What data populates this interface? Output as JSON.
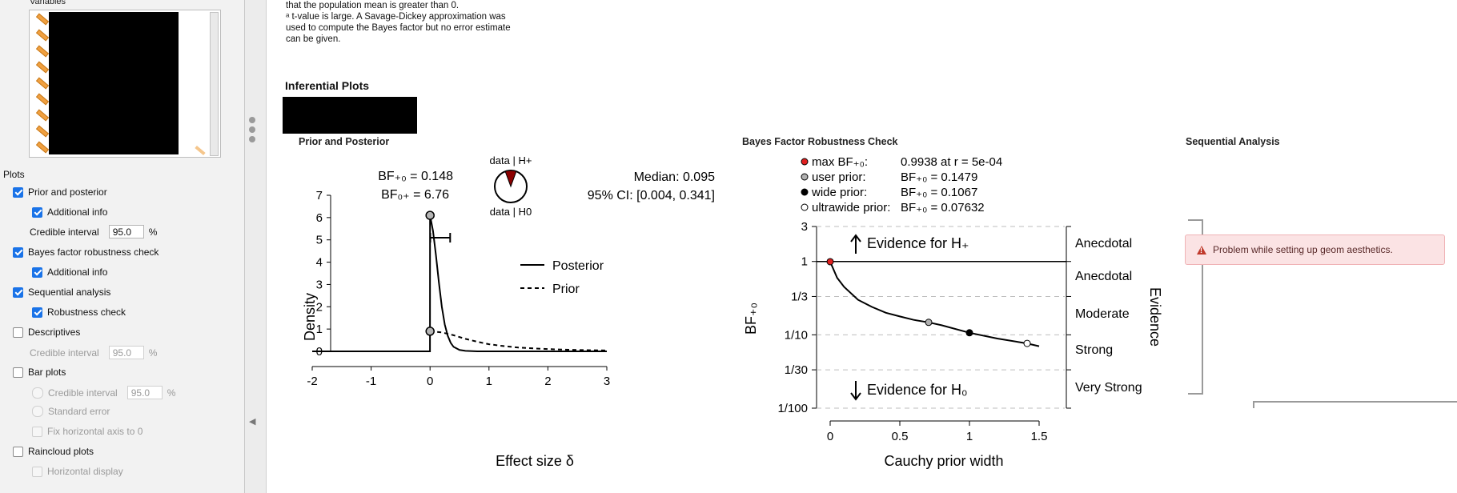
{
  "sidebar": {
    "variables_label": "Variables",
    "plots_label": "Plots",
    "options": [
      {
        "label": "Prior and posterior",
        "checked": true,
        "enabled": true
      },
      {
        "label": "Additional info",
        "checked": true,
        "enabled": true
      },
      {
        "label": "Bayes factor robustness check",
        "checked": true,
        "enabled": true
      },
      {
        "label": "Additional info",
        "checked": true,
        "enabled": true
      },
      {
        "label": "Sequential analysis",
        "checked": true,
        "enabled": true
      },
      {
        "label": "Robustness check",
        "checked": true,
        "enabled": true
      },
      {
        "label": "Descriptives",
        "checked": false,
        "enabled": true
      },
      {
        "label": "Bar plots",
        "checked": false,
        "enabled": true
      },
      {
        "label": "Standard error",
        "checked": false,
        "enabled": false
      },
      {
        "label": "Fix horizontal axis to 0",
        "checked": false,
        "enabled": false
      },
      {
        "label": "Raincloud plots",
        "checked": false,
        "enabled": true
      },
      {
        "label": "Horizontal display",
        "checked": false,
        "enabled": false
      }
    ],
    "ci_label": "Credible interval",
    "ci_value": "95.0",
    "percent": "%"
  },
  "footnotes": [
    "that the population mean is greater than 0.",
    "ᵃ t-value is large. A Savage-Dickey approximation was",
    "used to compute the Bayes factor but no error estimate",
    "can be given."
  ],
  "main": {
    "heading": "Inferential Plots",
    "plot_titles": {
      "prior_posterior": "Prior and Posterior",
      "robustness": "Bayes Factor Robustness Check",
      "sequential": "Sequential Analysis"
    },
    "error_message": "Problem while setting up geom aesthetics."
  },
  "pp_plot": {
    "bf10_line": "BF₊₀ = 0.148",
    "bf01_line": "BF₀₊ = 6.76",
    "pie_top": "data | H+",
    "pie_bottom": "data | H0",
    "median": "Median: 0.095",
    "ci": "95% CI: [0.004, 0.341]",
    "ylabel": "Density",
    "xlabel": "Effect size δ",
    "legend_posterior": "Posterior",
    "legend_prior": "Prior",
    "x_ticks": [
      "-2",
      "-1",
      "0",
      "1",
      "2",
      "3"
    ],
    "y_ticks": [
      "0",
      "1",
      "2",
      "3",
      "4",
      "5",
      "6",
      "7"
    ]
  },
  "rb_plot": {
    "legend": [
      {
        "label": "max BF₊₀:",
        "value": "0.9938 at r = 5e-04",
        "color": "#e02020"
      },
      {
        "label": "user prior:",
        "value": "BF₊₀ = 0.1479",
        "color": "#b0b0b0"
      },
      {
        "label": "wide prior:",
        "value": "BF₊₀ = 0.1067",
        "color": "#000000"
      },
      {
        "label": "ultrawide prior:",
        "value": "BF₊₀ = 0.07632",
        "color": "#ffffff"
      }
    ],
    "y_ticks": [
      "3",
      "1",
      "1/3",
      "1/10",
      "1/30",
      "1/100"
    ],
    "x_ticks": [
      "0",
      "0.5",
      "1",
      "1.5"
    ],
    "evidence_labels": [
      "Anecdotal",
      "Anecdotal",
      "Moderate",
      "Strong",
      "Very Strong"
    ],
    "arrow_up_label": "Evidence for H₊",
    "arrow_down_label": "Evidence for H₀",
    "ylabel": "BF₊₀",
    "right_label": "Evidence",
    "xlabel": "Cauchy prior width"
  },
  "chart_data": [
    {
      "type": "line",
      "xlabel": "Effect size δ",
      "ylabel": "Density",
      "xlim": [
        -2,
        3
      ],
      "ylim": [
        0,
        7
      ],
      "series": [
        {
          "name": "Posterior",
          "x": [
            -2,
            -0.001,
            0,
            0.05,
            0.1,
            0.15,
            0.2,
            0.25,
            0.3,
            0.35,
            0.4,
            0.5,
            0.6,
            0.8,
            1,
            3
          ],
          "y": [
            0,
            0,
            6.1,
            5.4,
            4.3,
            3.1,
            2.0,
            1.2,
            0.7,
            0.38,
            0.2,
            0.06,
            0.02,
            0,
            0,
            0
          ]
        },
        {
          "name": "Prior",
          "x": [
            0,
            0.2,
            0.4,
            0.6,
            0.8,
            1.0,
            1.2,
            1.5,
            2.0,
            2.5,
            3.0
          ],
          "y": [
            0.9,
            0.85,
            0.72,
            0.56,
            0.43,
            0.32,
            0.25,
            0.17,
            0.1,
            0.06,
            0.04
          ]
        }
      ],
      "points": [
        {
          "x": 0,
          "y": 6.1
        },
        {
          "x": 0,
          "y": 0.9
        }
      ],
      "ci_interval": [
        0.004,
        0.341
      ]
    },
    {
      "type": "line",
      "xlabel": "Cauchy prior width",
      "ylabel": "BF₊₀",
      "xlim": [
        0,
        1.5
      ],
      "y_scale": "log",
      "ylim": [
        0.01,
        3
      ],
      "series": [
        {
          "name": "BF",
          "x": [
            0,
            0.05,
            0.1,
            0.2,
            0.3,
            0.4,
            0.5,
            0.6,
            0.707,
            0.8,
            1.0,
            1.2,
            1.414,
            1.5
          ],
          "y": [
            0.9938,
            0.6,
            0.45,
            0.3,
            0.24,
            0.2,
            0.178,
            0.16,
            0.1479,
            0.135,
            0.1067,
            0.089,
            0.07632,
            0.07
          ]
        }
      ],
      "points": [
        {
          "label": "max",
          "x": 0,
          "y": 0.9938
        },
        {
          "label": "user prior",
          "x": 0.707,
          "y": 0.1479
        },
        {
          "label": "wide prior",
          "x": 1.0,
          "y": 0.1067
        },
        {
          "label": "ultrawide prior",
          "x": 1.414,
          "y": 0.07632
        }
      ]
    }
  ]
}
